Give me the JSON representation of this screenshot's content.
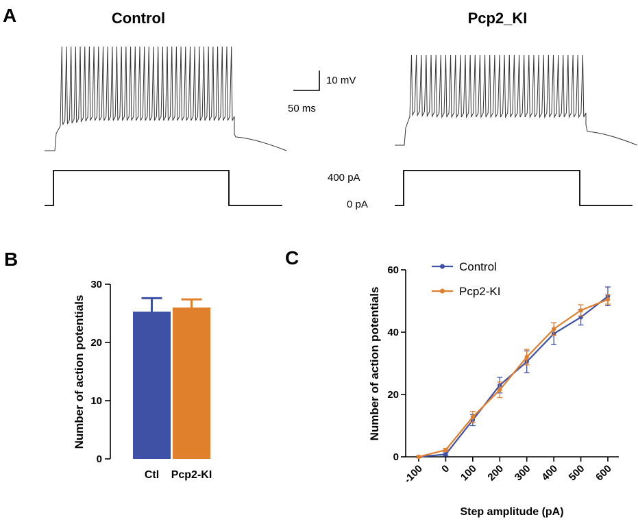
{
  "panel_a": {
    "letter": "A",
    "title_left": "Control",
    "title_right": "Pcp2_KI",
    "scale_voltage": "10 mV",
    "scale_time": "50 ms",
    "current_high": "400 pA",
    "current_low": "0 pA"
  },
  "panel_b": {
    "letter": "B"
  },
  "panel_c": {
    "letter": "C"
  },
  "colors": {
    "control": "#3F51A5",
    "pcp2": "#E07F2C",
    "trace": "#333333"
  },
  "chart_data": [
    {
      "type": "bar",
      "ylabel": "Number of action  potentials",
      "categories": [
        "Ctl",
        "Pcp2-KI"
      ],
      "values": [
        25.3,
        26.0
      ],
      "errors": [
        2.3,
        1.4
      ],
      "ylim": [
        0,
        30
      ],
      "yticks": [
        0,
        10,
        20,
        30
      ]
    },
    {
      "type": "line",
      "xlabel": "Step amplitude (pA)",
      "ylabel": "Number of action potentials",
      "x": [
        -100,
        0,
        100,
        200,
        300,
        400,
        500,
        600
      ],
      "ylim": [
        0,
        60
      ],
      "yticks": [
        0,
        20,
        40,
        60
      ],
      "legend_position": "top",
      "series": [
        {
          "name": "Control",
          "values": [
            0,
            0.8,
            11.8,
            23.0,
            30.5,
            39.5,
            44.8,
            51.5
          ],
          "errors": [
            0.3,
            0.5,
            1.8,
            2.5,
            3.5,
            3.5,
            2.5,
            3.0
          ]
        },
        {
          "name": "Pcp2-KI",
          "values": [
            0,
            2.2,
            12.8,
            21.5,
            32.0,
            41.0,
            47.0,
            50.5
          ],
          "errors": [
            0.3,
            0.5,
            1.8,
            2.5,
            2.5,
            2.0,
            1.8,
            1.5
          ]
        }
      ]
    }
  ]
}
